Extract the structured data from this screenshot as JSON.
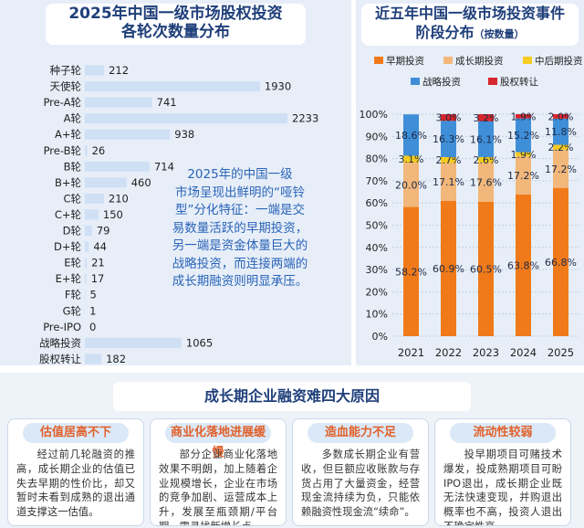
{
  "left_chart": {
    "title_line1": "2025年中国一级市场股权投资",
    "title_line2": "各轮次数量分布"
  },
  "right_chart": {
    "title_line1": "近五年中国一级市场投资事件",
    "title_line2": "阶段分布",
    "title_note": "（按数量）"
  },
  "quote": {
    "lines": [
      "2025年的中国一级",
      "市场呈现出鲜明的“哑铃",
      "型”分化特征：一端是交",
      "易数量活跃的早期投资，",
      "另一端是资金体量巨大的",
      "战略投资，而连接两端的",
      "成长期融资则明显承压。"
    ]
  },
  "bottom": {
    "header": "成长期企业融资难四大原因",
    "cards": [
      {
        "title": "估值居高不下",
        "text": "经过前几轮融资的推高，成长期企业的估值已失去早期的性价比，却又暂时未看到成熟的退出通道支撑这一估值。"
      },
      {
        "title": "商业化落地进展缓慢",
        "text": "部分企业商业化落地效果不明朗，加上随着企业规模增长，企业在市场的竞争加剧、运营成本上升，发展至瓶颈期/平台期，需寻找新增长点。"
      },
      {
        "title": "造血能力不足",
        "text": "多数成长期企业有营收，但巨额应收账款与存货占用了大量资金，经营现金流持续为负，只能依赖融资性现金流“续命”。"
      },
      {
        "title": "流动性较弱",
        "text": "投早期项目可赌技术爆发，投成熟期项目可盼IPO退出，成长期企业既无法快速变现，并购退出概率也不高，投资人退出不确定性高。"
      }
    ]
  },
  "chart_data": [
    {
      "type": "bar",
      "orientation": "horizontal",
      "title": "2025年中国一级市场股权投资各轮次数量分布",
      "categories": [
        "种子轮",
        "天使轮",
        "Pre-A轮",
        "A轮",
        "A+轮",
        "Pre-B轮",
        "B轮",
        "B+轮",
        "C轮",
        "C+轮",
        "D轮",
        "D+轮",
        "E轮",
        "E+轮",
        "F轮",
        "G轮",
        "Pre-IPO",
        "战略投资",
        "股权转让"
      ],
      "values": [
        212,
        1930,
        741,
        2233,
        938,
        26,
        714,
        460,
        210,
        150,
        79,
        44,
        21,
        17,
        5,
        1,
        0,
        1065,
        182
      ],
      "colors": {
        "bar": "#cfe0f5",
        "label": "#222222"
      },
      "xlim": [
        0,
        2233
      ]
    },
    {
      "type": "bar",
      "stacked": true,
      "title": "近五年中国一级市场投资事件阶段分布（按数量）",
      "categories": [
        "2021",
        "2022",
        "2023",
        "2024",
        "2025"
      ],
      "ylim": [
        0,
        100
      ],
      "y_ticks": [
        "0%",
        "10%",
        "20%",
        "30%",
        "40%",
        "50%",
        "60%",
        "70%",
        "80%",
        "90%",
        "100%"
      ],
      "series": [
        {
          "name": "早期投资",
          "color": "#f07a1a",
          "values": [
            58.2,
            60.9,
            60.5,
            63.8,
            66.8
          ],
          "labels": [
            "58.2%",
            "60.9%",
            "60.5%",
            "63.8%",
            "66.8%"
          ]
        },
        {
          "name": "成长期投资",
          "color": "#f2b77a",
          "values": [
            20.0,
            17.1,
            17.6,
            17.2,
            17.2
          ],
          "labels": [
            "20.0%",
            "17.1%",
            "17.6%",
            "17.2%",
            "17.2%"
          ]
        },
        {
          "name": "中后期投资",
          "color": "#f5cc1f",
          "values": [
            3.1,
            2.7,
            2.6,
            1.9,
            2.2
          ],
          "labels": [
            "3.1%",
            "2.7%",
            "2.6%",
            "1.9%",
            "2.2%"
          ]
        },
        {
          "name": "战略投资",
          "color": "#3f8ed8",
          "values": [
            18.6,
            16.3,
            16.1,
            15.2,
            11.8
          ],
          "labels": [
            "18.6%",
            "16.3%",
            "16.1%",
            "15.2%",
            "11.8%"
          ]
        },
        {
          "name": "股权转让",
          "color": "#d8262d",
          "values": [
            0,
            3.0,
            3.2,
            1.9,
            2.0
          ],
          "labels": [
            "",
            "3.0%",
            "3.2%",
            "1.9%",
            "2.0%"
          ]
        }
      ]
    }
  ]
}
